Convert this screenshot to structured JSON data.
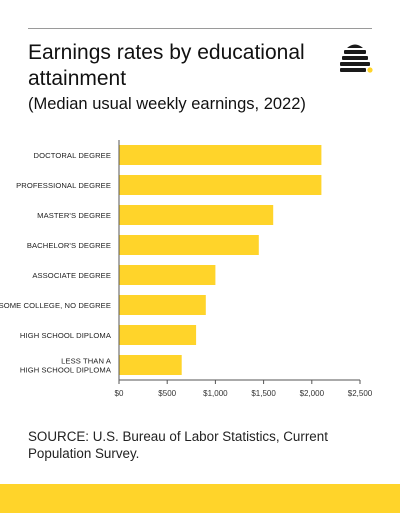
{
  "header": {
    "title": "Earnings rates by educational attainment",
    "subtitle": "(Median usual weekly earnings, 2022)"
  },
  "logo": {
    "icon": "beehive-logo-icon",
    "color": "#1a1a1a",
    "accent": "#ffd42a"
  },
  "colors": {
    "bar": "#ffd42a",
    "axis": "#555555",
    "footer": "#ffd42a"
  },
  "chart_data": {
    "type": "bar",
    "orientation": "horizontal",
    "title": "Earnings rates by educational attainment",
    "subtitle": "(Median usual weekly earnings, 2022)",
    "categories": [
      [
        "DOCTORAL DEGREE"
      ],
      [
        "PROFESSIONAL DEGREE"
      ],
      [
        "MASTER'S DEGREE"
      ],
      [
        "BACHELOR'S DEGREE"
      ],
      [
        "ASSOCIATE DEGREE"
      ],
      [
        "SOME COLLEGE, NO DEGREE"
      ],
      [
        "HIGH SCHOOL DIPLOMA"
      ],
      [
        "LESS THAN A",
        "HIGH SCHOOL DIPLOMA"
      ]
    ],
    "values": [
      2100,
      2100,
      1600,
      1450,
      1000,
      900,
      800,
      650
    ],
    "xlim": [
      0,
      2500
    ],
    "xticks": [
      0,
      500,
      1000,
      1500,
      2000,
      2500
    ],
    "xtick_labels": [
      "$0",
      "$500",
      "$1,000",
      "$1,500",
      "$2,000",
      "$2,500"
    ],
    "xlabel": "",
    "ylabel": "",
    "grid": false,
    "legend": "none"
  },
  "source": "SOURCE: U.S. Bureau of Labor Statistics, Current Population Survey."
}
